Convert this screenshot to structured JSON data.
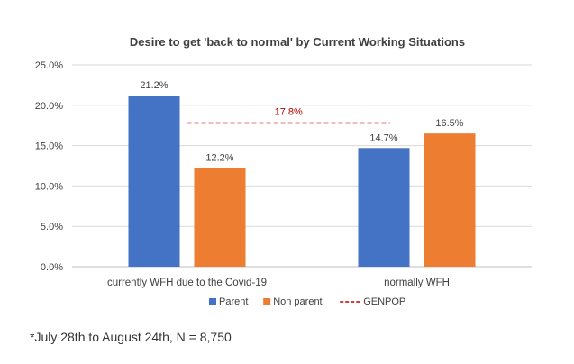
{
  "chart_data": {
    "type": "bar",
    "title": "Desire to get 'back to normal' by Current Working Situations",
    "categories": [
      "currently WFH due to the Covid-19",
      "normally WFH"
    ],
    "series": [
      {
        "name": "Parent",
        "values": [
          21.2,
          14.7
        ],
        "labels": [
          "21.2%",
          "14.7%"
        ],
        "color": "#4472c4"
      },
      {
        "name": "Non parent",
        "values": [
          12.2,
          16.5
        ],
        "labels": [
          "12.2%",
          "16.5%"
        ],
        "color": "#ed7d31"
      }
    ],
    "reference_line": {
      "name": "GENPOP",
      "value": 17.8,
      "label": "17.8%",
      "color": "#c00000",
      "style": "dashed"
    },
    "yticks": [
      "0.0%",
      "5.0%",
      "10.0%",
      "15.0%",
      "20.0%",
      "25.0%"
    ],
    "ylim": [
      0,
      25
    ],
    "grid": true,
    "legend_position": "bottom"
  },
  "footnote": "*July 28th to August 24th, N = 8,750"
}
